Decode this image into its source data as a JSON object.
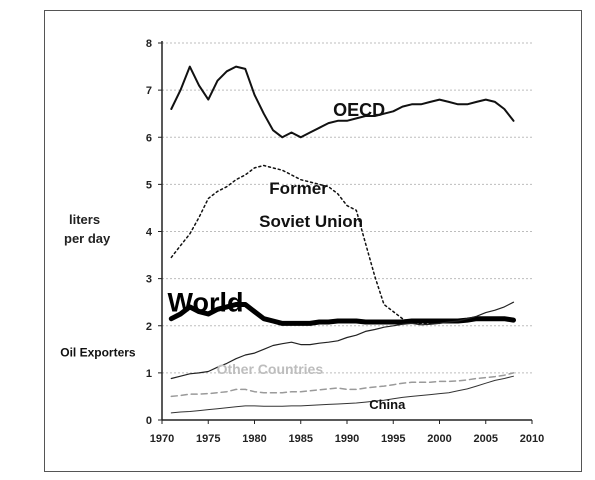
{
  "chart_data": {
    "type": "line",
    "title": "",
    "ylabel": [
      "liters",
      "per day"
    ],
    "xlabel": "",
    "xlim": [
      1970,
      2010
    ],
    "ylim": [
      0,
      8
    ],
    "xticks": [
      1970,
      1975,
      1980,
      1985,
      1990,
      1995,
      2000,
      2005,
      2010
    ],
    "yticks": [
      0,
      1,
      2,
      3,
      4,
      5,
      6,
      7,
      8
    ],
    "grid": true,
    "series": [
      {
        "name": "OECD",
        "color": "#111111",
        "style": "solid",
        "width": 2,
        "x": [
          1971,
          1972,
          1973,
          1974,
          1975,
          1976,
          1977,
          1978,
          1979,
          1980,
          1981,
          1982,
          1983,
          1984,
          1985,
          1986,
          1987,
          1988,
          1989,
          1990,
          1991,
          1992,
          1993,
          1994,
          1995,
          1996,
          1997,
          1998,
          1999,
          2000,
          2001,
          2002,
          2003,
          2004,
          2005,
          2006,
          2007,
          2008
        ],
        "values": [
          6.6,
          7.0,
          7.5,
          7.1,
          6.8,
          7.2,
          7.4,
          7.5,
          7.45,
          6.9,
          6.5,
          6.15,
          6.0,
          6.1,
          6.0,
          6.1,
          6.2,
          6.3,
          6.35,
          6.35,
          6.4,
          6.45,
          6.45,
          6.5,
          6.55,
          6.65,
          6.7,
          6.7,
          6.75,
          6.8,
          6.75,
          6.7,
          6.7,
          6.75,
          6.8,
          6.75,
          6.6,
          6.35
        ]
      },
      {
        "name": "Former Soviet Union",
        "color": "#111111",
        "style": "dotted",
        "width": 1.5,
        "x": [
          1971,
          1972,
          1973,
          1974,
          1975,
          1976,
          1977,
          1978,
          1979,
          1980,
          1981,
          1982,
          1983,
          1984,
          1985,
          1986,
          1987,
          1988,
          1989,
          1990,
          1991,
          1992,
          1993,
          1994,
          1995,
          1996,
          1997,
          1998,
          1999,
          2000
        ],
        "values": [
          3.45,
          3.7,
          3.95,
          4.3,
          4.7,
          4.85,
          4.95,
          5.1,
          5.2,
          5.35,
          5.4,
          5.35,
          5.3,
          5.2,
          5.1,
          5.05,
          5.0,
          4.95,
          4.8,
          4.55,
          4.45,
          3.75,
          3.05,
          2.45,
          2.3,
          2.15,
          2.05,
          2.05,
          2.05,
          2.05
        ]
      },
      {
        "name": "World",
        "color": "#000000",
        "style": "solid",
        "width": 5,
        "x": [
          1971,
          1972,
          1973,
          1974,
          1975,
          1976,
          1977,
          1978,
          1979,
          1980,
          1981,
          1982,
          1983,
          1984,
          1985,
          1986,
          1987,
          1988,
          1989,
          1990,
          1991,
          1992,
          1993,
          1994,
          1995,
          1996,
          1997,
          1998,
          1999,
          2000,
          2001,
          2002,
          2003,
          2004,
          2005,
          2006,
          2007,
          2008
        ],
        "values": [
          2.15,
          2.25,
          2.4,
          2.3,
          2.25,
          2.35,
          2.4,
          2.45,
          2.45,
          2.3,
          2.15,
          2.1,
          2.05,
          2.05,
          2.05,
          2.05,
          2.08,
          2.08,
          2.1,
          2.1,
          2.1,
          2.08,
          2.08,
          2.08,
          2.08,
          2.08,
          2.1,
          2.1,
          2.1,
          2.1,
          2.1,
          2.1,
          2.12,
          2.15,
          2.15,
          2.15,
          2.15,
          2.12
        ]
      },
      {
        "name": "Oil Exporters",
        "color": "#222222",
        "style": "solid",
        "width": 1.2,
        "x": [
          1971,
          1972,
          1973,
          1974,
          1975,
          1976,
          1977,
          1978,
          1979,
          1980,
          1981,
          1982,
          1983,
          1984,
          1985,
          1986,
          1987,
          1988,
          1989,
          1990,
          1991,
          1992,
          1993,
          1994,
          1995,
          1996,
          1997,
          1998,
          1999,
          2000,
          2001,
          2002,
          2003,
          2004,
          2005,
          2006,
          2007,
          2008
        ],
        "values": [
          0.88,
          0.93,
          0.98,
          1.0,
          1.03,
          1.12,
          1.2,
          1.3,
          1.38,
          1.42,
          1.5,
          1.58,
          1.62,
          1.65,
          1.6,
          1.6,
          1.63,
          1.65,
          1.68,
          1.75,
          1.8,
          1.88,
          1.92,
          1.97,
          2.0,
          2.03,
          2.05,
          2.02,
          2.03,
          2.05,
          2.08,
          2.1,
          2.15,
          2.2,
          2.28,
          2.33,
          2.4,
          2.5
        ]
      },
      {
        "name": "Other Countries",
        "color": "#9a9a9a",
        "style": "dashed",
        "width": 1.5,
        "x": [
          1971,
          1972,
          1973,
          1974,
          1975,
          1976,
          1977,
          1978,
          1979,
          1980,
          1981,
          1982,
          1983,
          1984,
          1985,
          1986,
          1987,
          1988,
          1989,
          1990,
          1991,
          1992,
          1993,
          1994,
          1995,
          1996,
          1997,
          1998,
          1999,
          2000,
          2001,
          2002,
          2003,
          2004,
          2005,
          2006,
          2007,
          2008
        ],
        "values": [
          0.5,
          0.52,
          0.55,
          0.55,
          0.56,
          0.58,
          0.6,
          0.65,
          0.65,
          0.6,
          0.58,
          0.58,
          0.58,
          0.6,
          0.6,
          0.62,
          0.64,
          0.66,
          0.68,
          0.65,
          0.65,
          0.68,
          0.7,
          0.72,
          0.75,
          0.78,
          0.8,
          0.8,
          0.8,
          0.82,
          0.82,
          0.83,
          0.85,
          0.88,
          0.9,
          0.92,
          0.95,
          1.0
        ]
      },
      {
        "name": "China",
        "color": "#333333",
        "style": "solid",
        "width": 1,
        "x": [
          1971,
          1972,
          1973,
          1974,
          1975,
          1976,
          1977,
          1978,
          1979,
          1980,
          1981,
          1982,
          1983,
          1984,
          1985,
          1986,
          1987,
          1988,
          1989,
          1990,
          1991,
          1992,
          1993,
          1994,
          1995,
          1996,
          1997,
          1998,
          1999,
          2000,
          2001,
          2002,
          2003,
          2004,
          2005,
          2006,
          2007,
          2008
        ],
        "values": [
          0.15,
          0.17,
          0.18,
          0.2,
          0.22,
          0.24,
          0.26,
          0.28,
          0.3,
          0.3,
          0.29,
          0.29,
          0.29,
          0.3,
          0.3,
          0.31,
          0.32,
          0.33,
          0.34,
          0.35,
          0.36,
          0.38,
          0.4,
          0.42,
          0.45,
          0.48,
          0.5,
          0.52,
          0.54,
          0.56,
          0.58,
          0.62,
          0.66,
          0.72,
          0.78,
          0.84,
          0.88,
          0.93
        ]
      }
    ],
    "annotations": [
      {
        "text": "OECD",
        "x": 1988.5,
        "y": 6.45,
        "size": 18,
        "color": "#111111"
      },
      {
        "text": "Former",
        "x": 1981.6,
        "y": 4.8,
        "size": 17,
        "color": "#111111"
      },
      {
        "text": "Soviet Union",
        "x": 1980.5,
        "y": 4.1,
        "size": 17,
        "color": "#111111"
      },
      {
        "text": "World",
        "x": 1970.6,
        "y": 2.3,
        "size": 27,
        "color": "#000000"
      },
      {
        "text": "Oil Exporters",
        "x": 1959.0,
        "y": 1.35,
        "size": 12,
        "color": "#111111"
      },
      {
        "text": "Other Countries",
        "x": 1975.9,
        "y": 0.98,
        "size": 14,
        "color": "#bdbdbd"
      },
      {
        "text": "China",
        "x": 1992.4,
        "y": 0.23,
        "size": 13,
        "color": "#111111"
      }
    ]
  }
}
